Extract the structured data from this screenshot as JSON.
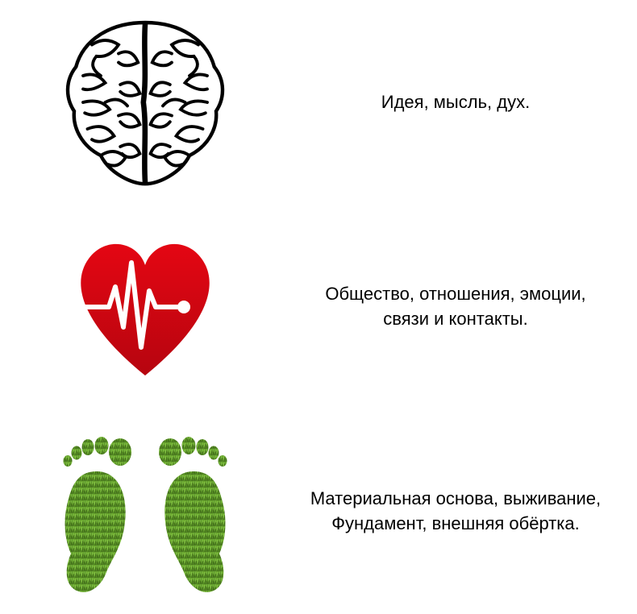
{
  "type": "infographic",
  "layout": "3-rows-icon-left-text-right",
  "background_color": "#ffffff",
  "text_color": "#000000",
  "font_family": "Arial, sans-serif",
  "font_size_pt": 16,
  "rows": [
    {
      "id": "brain",
      "icon_name": "brain-icon",
      "icon_colors": {
        "outline": "#000000",
        "fill": "#ffffff"
      },
      "text": "Идея, мысль, дух."
    },
    {
      "id": "heart",
      "icon_name": "heart-icon",
      "icon_colors": {
        "heart_fill_top": "#e40613",
        "heart_fill_bottom": "#b6050f",
        "pulse_line": "#ffffff",
        "pulse_dot": "#ffffff"
      },
      "text": "Общество, отношения, эмоции,\nсвязи и контакты."
    },
    {
      "id": "feet",
      "icon_name": "footprints-icon",
      "icon_colors": {
        "fill_light": "#6fae2f",
        "fill_dark": "#4a7a1f",
        "texture": "#3d6619"
      },
      "text": "Материальная основа, выживание,\nФундамент,  внешняя обёртка."
    }
  ]
}
